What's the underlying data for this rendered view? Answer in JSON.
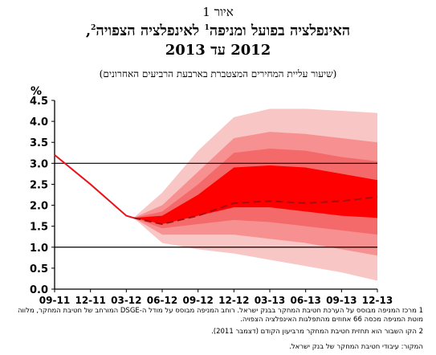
{
  "figure_label": "איור 1",
  "title_line1": "האינפלציה בפועל ומניפה",
  "title_sup1": "1",
  "title_line1b": " לאינפלציה הצפויה",
  "title_sup2": "2",
  "title_line1_end": ",",
  "title_line2": "2012 עד 2013",
  "subtitle": "(שיעור עליית המחירים המצטברת בארבעת הרביעים האחרונים)",
  "footnotes": {
    "note1": "1 מרכז המניפה מבוסס על הערכת חטיבת המחקר בבנק ישראל. רוחב המניפה מבוסס על מודל ה-DSGE המורחב של חטיבת המחקר, מלווה מוטת המניפה מכסה 66 אחוזים מהתפלגות האינפלציה הצפויה.",
    "note2": "2 הקו השבור הוא תחזית חטיבת המחקר מרביעון הקודם (דצמבר 2011).",
    "source": "המקור: עיבודי חטיבת המחקר של בנק ישראל."
  },
  "colors": {
    "actual": "#e8141a",
    "band_inner": "#ff0000",
    "band_2": "#f46a6a",
    "band_3": "#f79191",
    "band_outer": "#f9c6c6"
  },
  "chart_data": {
    "type": "area",
    "ylabel": "%",
    "ylim": [
      0,
      4.5
    ],
    "yticks": [
      "0.0",
      "0.5",
      "1.0",
      "1.5",
      "2.0",
      "2.5",
      "3.0",
      "3.5",
      "4.0",
      "4.5"
    ],
    "x_ticks": [
      "09-11",
      "12-11",
      "03-12",
      "06-12",
      "09-12",
      "12-12",
      "03-13",
      "06-13",
      "09-13",
      "12-13"
    ],
    "reference_lines": [
      1.0,
      3.0
    ],
    "grid": false,
    "actual": {
      "x": [
        0,
        1,
        2,
        2.2
      ],
      "y": [
        3.2,
        2.5,
        1.75,
        1.7
      ]
    },
    "previous_forecast": {
      "style": "dashed",
      "x": [
        2.2,
        3,
        4,
        5,
        6,
        7,
        8,
        9
      ],
      "y": [
        1.7,
        1.55,
        1.75,
        2.05,
        2.1,
        2.05,
        2.1,
        2.2
      ]
    },
    "fan": {
      "x": [
        2.2,
        3,
        4,
        5,
        6,
        7,
        8,
        9
      ],
      "center": [
        1.7,
        1.65,
        1.95,
        2.4,
        2.45,
        2.35,
        2.25,
        2.15
      ],
      "bands": [
        {
          "name": "inner",
          "lower": [
            1.7,
            1.55,
            1.75,
            1.95,
            1.95,
            1.85,
            1.75,
            1.7
          ],
          "upper": [
            1.7,
            1.75,
            2.25,
            2.9,
            2.95,
            2.9,
            2.75,
            2.6
          ]
        },
        {
          "name": "second",
          "lower": [
            1.7,
            1.45,
            1.55,
            1.65,
            1.6,
            1.5,
            1.4,
            1.3
          ],
          "upper": [
            1.7,
            1.85,
            2.5,
            3.25,
            3.35,
            3.3,
            3.15,
            3.05
          ]
        },
        {
          "name": "third",
          "lower": [
            1.7,
            1.3,
            1.3,
            1.3,
            1.2,
            1.1,
            0.95,
            0.8
          ],
          "upper": [
            1.7,
            2.0,
            2.8,
            3.6,
            3.75,
            3.7,
            3.6,
            3.5
          ]
        },
        {
          "name": "outer",
          "lower": [
            1.7,
            1.1,
            0.95,
            0.85,
            0.7,
            0.55,
            0.4,
            0.2
          ],
          "upper": [
            1.7,
            2.3,
            3.3,
            4.1,
            4.3,
            4.3,
            4.25,
            4.2
          ]
        }
      ]
    }
  }
}
